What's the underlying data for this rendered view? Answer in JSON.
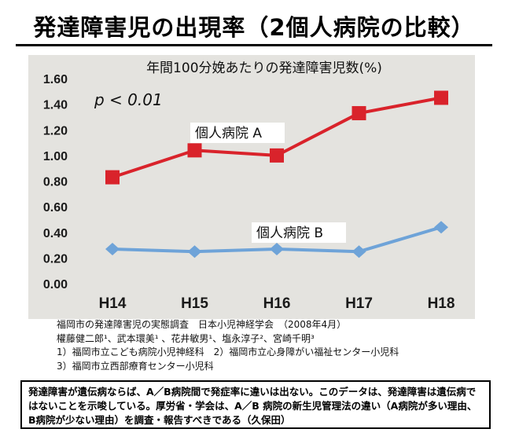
{
  "title": "発達障害児の出現率（2個人病院の比較）",
  "chart_data": {
    "type": "line",
    "title": "年間100分娩あたりの発達障害児数(%)",
    "annotation": "p < 0.01",
    "categories": [
      "H14",
      "H15",
      "H16",
      "H17",
      "H18"
    ],
    "ylim": [
      0,
      1.6
    ],
    "yticks": [
      "0.00",
      "0.20",
      "0.40",
      "0.60",
      "0.80",
      "1.00",
      "1.20",
      "1.40",
      "1.60"
    ],
    "grid": false,
    "series": [
      {
        "name": "個人病院 A",
        "values": [
          0.83,
          1.04,
          1.0,
          1.33,
          1.45
        ],
        "color": "#d9232b",
        "marker": "square"
      },
      {
        "name": "個人病院 B",
        "values": [
          0.27,
          0.25,
          0.27,
          0.25,
          0.44
        ],
        "color": "#6ea3d8",
        "marker": "diamond"
      }
    ]
  },
  "sources": [
    "福岡市の発達障害児の実態調査　日本小児神経学会　（2008年4月）",
    "權藤健二郎¹、武本環美¹ 、花井敏男¹、塩永淳子²、宮崎千明³",
    "1）福岡市立こども病院小児神経科　2）福岡市立心身障がい福祉センター小児科",
    "3）福岡市立西部療育センター小児科"
  ],
  "note": "発達障害が遺伝病ならば、A／B病院間で発症率に違いは出ない。このデータは、発達障害は遺伝病ではないことを示唆している。厚労省・学会は、A／B 病院の新生児管理法の違い（A病院が多い理由、B病院が少ない理由）を調査・報告すべきである（久保田）"
}
